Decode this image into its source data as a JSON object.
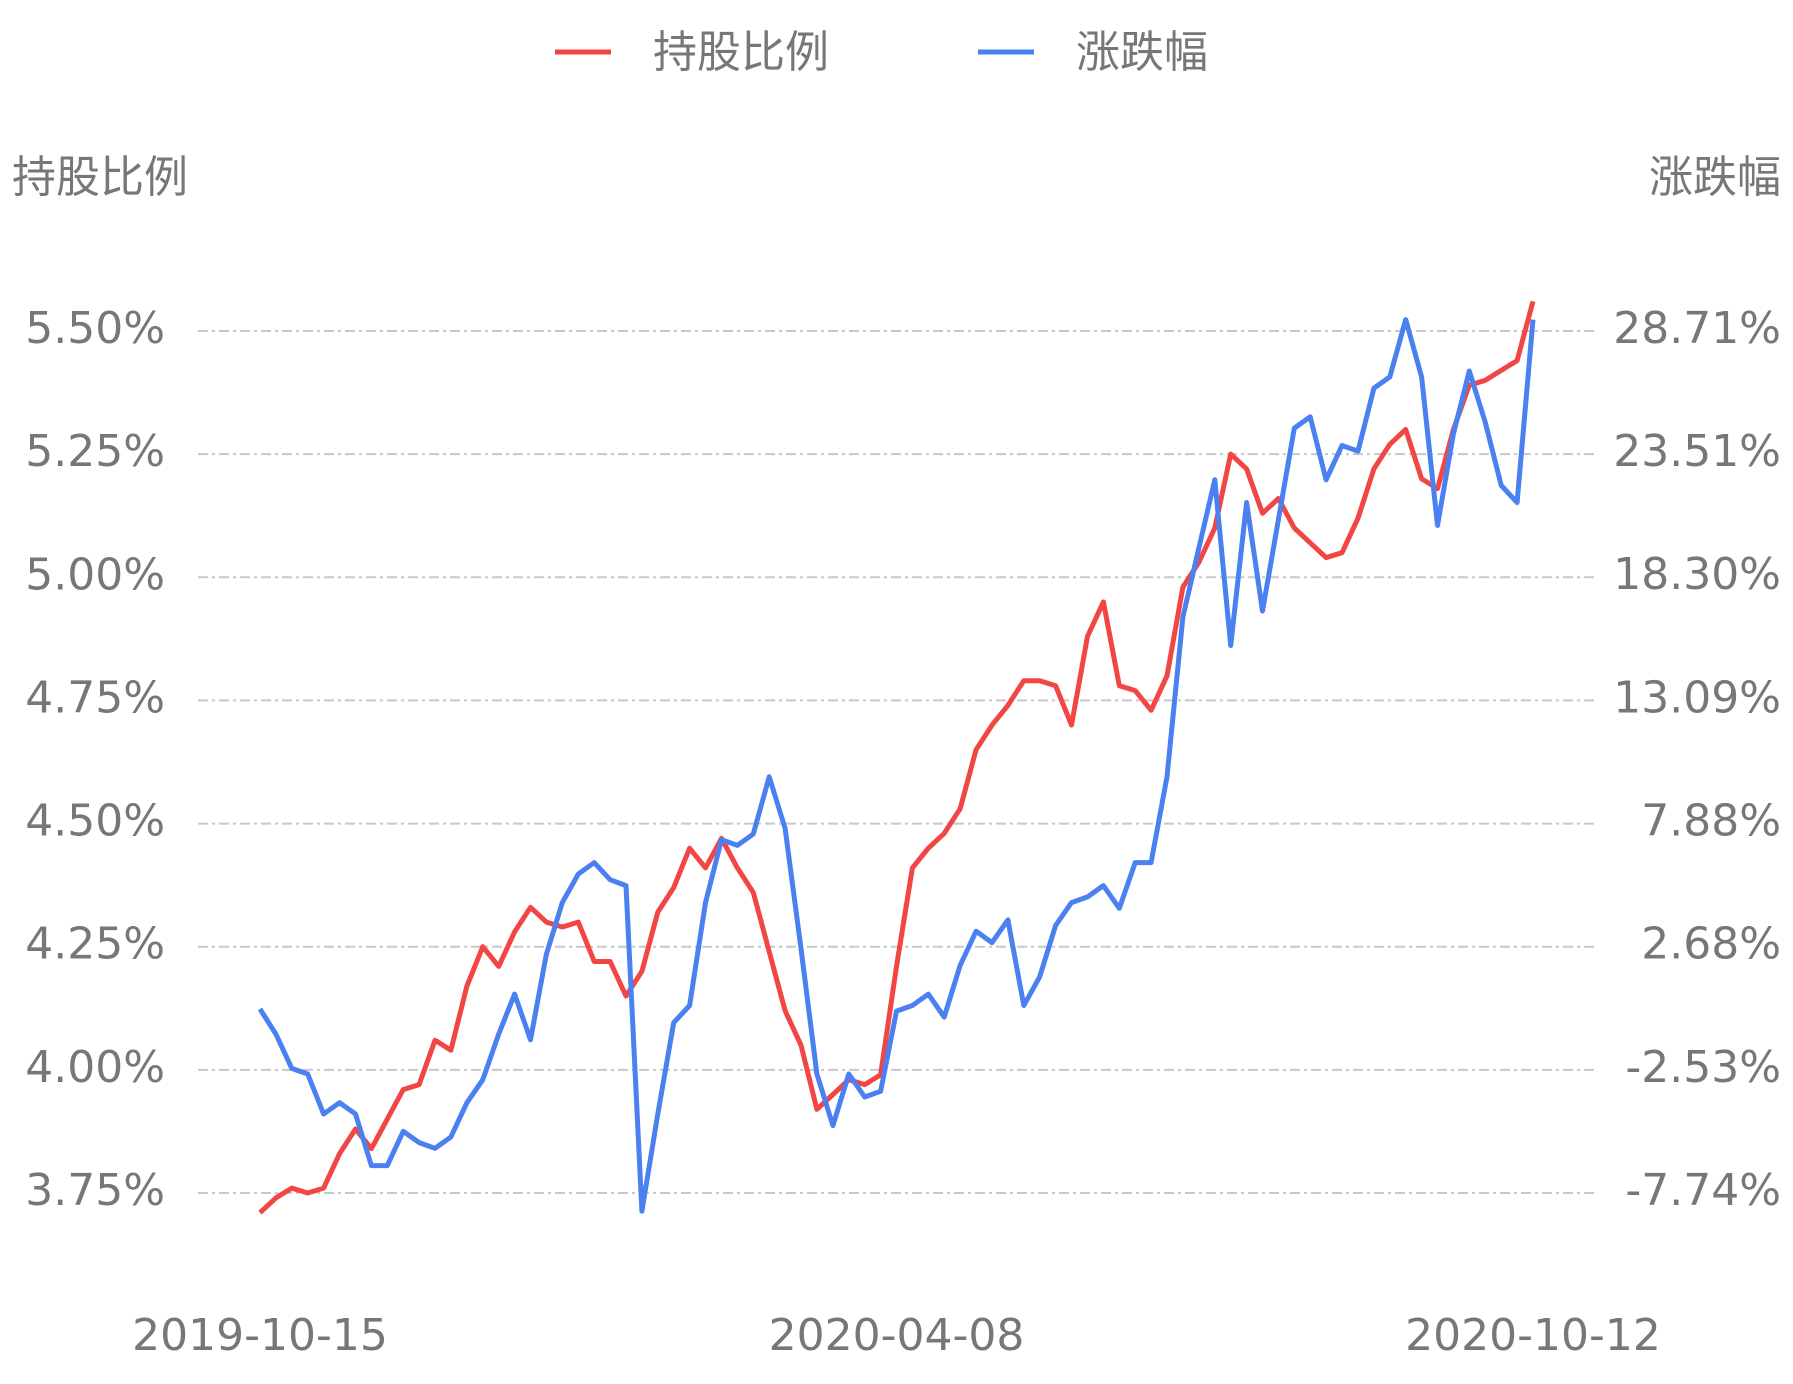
{
  "chart_data": {
    "type": "line",
    "y_label": "持股比例",
    "y2_label": "涨跌幅",
    "categories": [
      "2019-10-15",
      null,
      null,
      null,
      null,
      null,
      null,
      null,
      null,
      null,
      null,
      null,
      null,
      null,
      null,
      null,
      null,
      null,
      null,
      null,
      null,
      null,
      null,
      null,
      null,
      null,
      null,
      null,
      null,
      null,
      null,
      null,
      null,
      null,
      null,
      null,
      null,
      null,
      null,
      null,
      "2020-04-08",
      null,
      null,
      null,
      null,
      null,
      null,
      null,
      null,
      null,
      null,
      null,
      null,
      null,
      null,
      null,
      null,
      null,
      null,
      null,
      null,
      null,
      null,
      null,
      null,
      null,
      null,
      null,
      null,
      null,
      null,
      null,
      null,
      null,
      null,
      null,
      null,
      null,
      null,
      null,
      "2020-10-12"
    ],
    "series": [
      {
        "name": "持股比例",
        "color": "#f24645",
        "axis": "y",
        "values": [
          3.71,
          3.74,
          3.76,
          3.75,
          3.76,
          3.83,
          3.88,
          3.84,
          3.9,
          3.96,
          3.97,
          4.06,
          4.04,
          4.17,
          4.25,
          4.21,
          4.28,
          4.33,
          4.3,
          4.29,
          4.3,
          4.22,
          4.22,
          4.15,
          4.2,
          4.32,
          4.37,
          4.45,
          4.41,
          4.47,
          4.41,
          4.36,
          4.24,
          4.12,
          4.05,
          3.92,
          3.95,
          3.98,
          3.97,
          3.99,
          4.21,
          4.41,
          4.45,
          4.48,
          4.53,
          4.65,
          4.7,
          4.74,
          4.79,
          4.79,
          4.78,
          4.7,
          4.88,
          4.95,
          4.78,
          4.77,
          4.73,
          4.8,
          4.98,
          5.03,
          5.1,
          5.25,
          5.22,
          5.13,
          5.16,
          5.1,
          5.07,
          5.04,
          5.05,
          5.12,
          5.22,
          5.27,
          5.3,
          5.2,
          5.18,
          5.3,
          5.39,
          5.4,
          5.42,
          5.44,
          5.56
        ]
      },
      {
        "name": "涨跌幅",
        "color": "#4a80f0",
        "axis": "y2",
        "values": [
          0.04,
          -1.02,
          -2.47,
          -2.71,
          -4.4,
          -3.92,
          -4.4,
          -6.58,
          -6.58,
          -5.13,
          -5.61,
          -5.85,
          -5.37,
          -3.92,
          -2.95,
          -1.02,
          0.67,
          -1.26,
          2.36,
          4.54,
          5.75,
          6.23,
          5.51,
          5.26,
          -8.51,
          -4.4,
          -0.54,
          0.19,
          4.54,
          7.2,
          6.96,
          7.44,
          9.86,
          7.68,
          2.6,
          -2.71,
          -4.89,
          -2.71,
          -3.68,
          -3.44,
          -0.05,
          0.19,
          0.67,
          -0.3,
          1.88,
          3.33,
          2.85,
          3.81,
          0.19,
          1.4,
          3.57,
          4.54,
          4.78,
          5.26,
          4.3,
          6.23,
          6.23,
          9.86,
          16.62,
          19.52,
          22.42,
          15.41,
          21.46,
          16.87,
          20.73,
          24.6,
          25.08,
          22.42,
          23.87,
          23.63,
          26.29,
          26.77,
          29.19,
          26.77,
          20.49,
          24.36,
          27.02,
          24.84,
          22.18,
          21.46,
          29.19
        ]
      }
    ],
    "ylim": [
      3.75,
      5.5
    ],
    "yticks": [
      {
        "value": 3.75,
        "label": "3.75%"
      },
      {
        "value": 4.0,
        "label": "4.00%"
      },
      {
        "value": 4.25,
        "label": "4.25%"
      },
      {
        "value": 4.5,
        "label": "4.50%"
      },
      {
        "value": 4.75,
        "label": "4.75%"
      },
      {
        "value": 5.0,
        "label": "5.00%"
      },
      {
        "value": 5.25,
        "label": "5.25%"
      },
      {
        "value": 5.5,
        "label": "5.50%"
      }
    ],
    "y2lim": [
      -7.74,
      28.71
    ],
    "y2ticks": [
      {
        "value": -7.74,
        "label": "-7.74%"
      },
      {
        "value": -2.53,
        "label": "-2.53%"
      },
      {
        "value": 2.68,
        "label": "2.68%"
      },
      {
        "value": 7.88,
        "label": "7.88%"
      },
      {
        "value": 13.09,
        "label": "13.09%"
      },
      {
        "value": 18.3,
        "label": "18.30%"
      },
      {
        "value": 23.51,
        "label": "23.51%"
      },
      {
        "value": 28.71,
        "label": "28.71%"
      }
    ],
    "grid": true,
    "legend": "top"
  }
}
